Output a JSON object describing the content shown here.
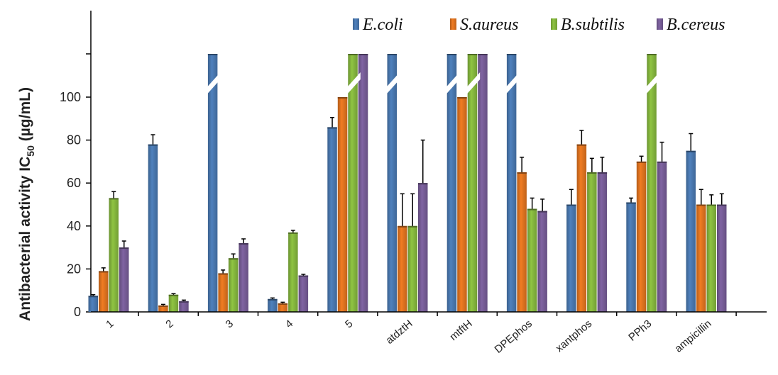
{
  "chart_data": {
    "type": "bar",
    "ylabel_main": "Antibacterial activity IC",
    "ylabel_sub": "50",
    "ylabel_unit": " (µg/mL)",
    "ylim": [
      0,
      120
    ],
    "yticks": [
      "0",
      "20",
      "40",
      "60",
      "80",
      "100"
    ],
    "grid": false,
    "legend_position": "top-right",
    "categories": [
      "1",
      "2",
      "3",
      "4",
      "5",
      "atdztH",
      "mtftH",
      "DPEphos",
      "xantphos",
      "PPh3",
      "ampicillin"
    ],
    "series": [
      {
        "name": "E.coli",
        "color": "#4f81bd",
        "values": [
          7.5,
          78,
          120,
          6,
          86,
          120,
          120,
          120,
          50,
          51,
          75
        ],
        "errors": [
          0.5,
          4.5,
          0,
          0.5,
          4.5,
          0,
          0,
          0,
          7,
          2,
          8
        ],
        "broken": [
          false,
          false,
          true,
          false,
          false,
          true,
          true,
          true,
          false,
          false,
          false
        ]
      },
      {
        "name": "S.aureus",
        "color": "#f07c22",
        "values": [
          19,
          3,
          18,
          4,
          100,
          40,
          100,
          65,
          78,
          70,
          50
        ],
        "errors": [
          1.5,
          0.5,
          1.5,
          0.5,
          0,
          15,
          0,
          7,
          6.5,
          2.5,
          7
        ],
        "broken": [
          false,
          false,
          false,
          false,
          false,
          false,
          false,
          false,
          false,
          false,
          false
        ]
      },
      {
        "name": "B.subtilis",
        "color": "#8fc442",
        "values": [
          53,
          8,
          25,
          37,
          120,
          40,
          120,
          48,
          65,
          120,
          50
        ],
        "errors": [
          3,
          0.5,
          2,
          1,
          0,
          15,
          0,
          5,
          6.5,
          0,
          4.5
        ],
        "broken": [
          false,
          false,
          false,
          false,
          true,
          false,
          true,
          false,
          false,
          true,
          false
        ]
      },
      {
        "name": "B.cereus",
        "color": "#8064a2",
        "values": [
          30,
          5,
          32,
          17,
          120,
          60,
          120,
          47,
          65,
          70,
          50
        ],
        "errors": [
          3,
          0.5,
          2,
          0.5,
          0,
          20,
          0,
          5.5,
          7,
          9,
          5
        ],
        "broken": [
          false,
          false,
          false,
          false,
          false,
          false,
          false,
          false,
          false,
          false,
          false
        ]
      }
    ]
  }
}
